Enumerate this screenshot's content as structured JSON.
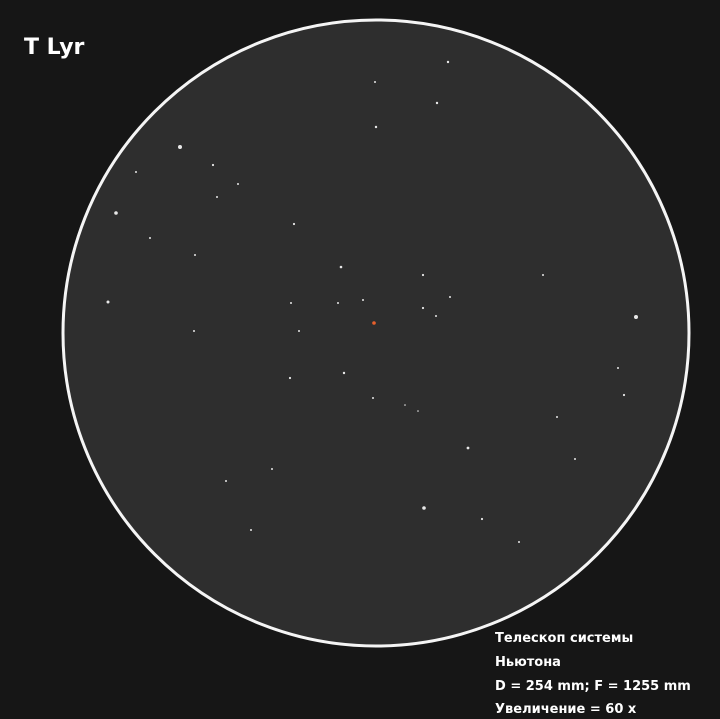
{
  "title": "T Lyr",
  "caption": {
    "lines": [
      "Телескоп системы",
      "Ньютона",
      "D = 254 mm; F = 1255 mm",
      "Увеличение = 60 x"
    ]
  }
}
